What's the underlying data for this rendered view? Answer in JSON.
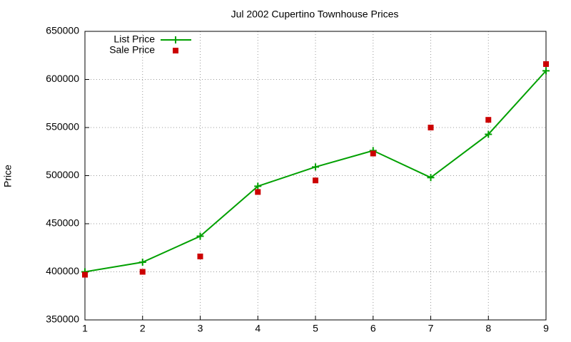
{
  "chart_data": {
    "type": "line",
    "title": "Jul 2002 Cupertino Townhouse Prices",
    "y_label": "Price",
    "x": [
      1,
      2,
      3,
      4,
      5,
      6,
      7,
      8,
      9
    ],
    "series": [
      {
        "name": "List Price",
        "color": "#00a000",
        "mode": "lines+markers",
        "values": [
          400000,
          410000,
          437000,
          489000,
          509000,
          526000,
          498000,
          543000,
          609000
        ]
      },
      {
        "name": "Sale Price",
        "color": "#cc0000",
        "mode": "markers",
        "values": [
          397000,
          400000,
          416000,
          483000,
          495000,
          523000,
          550000,
          558000,
          616000
        ]
      }
    ],
    "xlim": [
      1,
      9
    ],
    "xticks": [
      1,
      2,
      3,
      4,
      5,
      6,
      7,
      8,
      9
    ],
    "ylim": [
      350000,
      650000
    ],
    "yticks": [
      350000,
      400000,
      450000,
      500000,
      550000,
      600000,
      650000
    ],
    "grid": true,
    "legend": "top-left"
  }
}
